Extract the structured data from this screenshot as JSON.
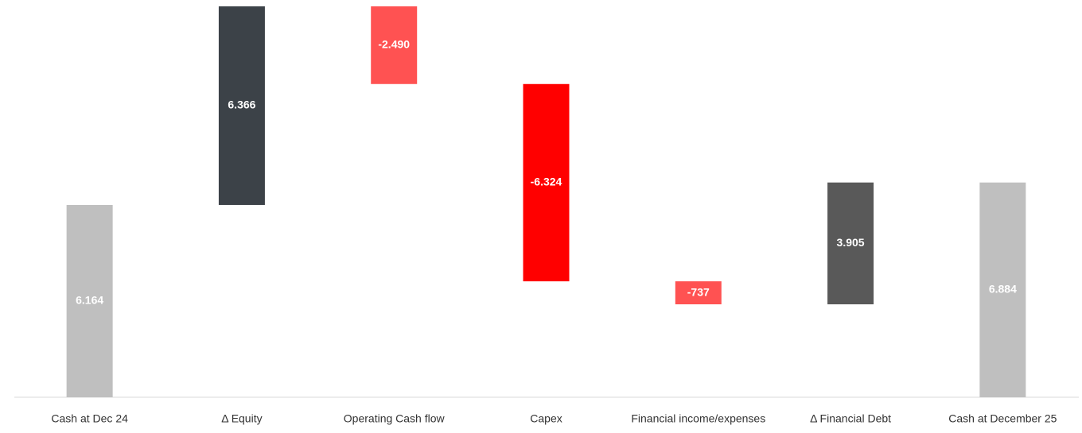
{
  "chart_data": {
    "type": "waterfall",
    "categories": [
      "Cash at Dec 24",
      "Δ Equity",
      "Operating Cash flow",
      "Capex",
      "Financial income/expenses",
      "Δ Financial Debt",
      "Cash at December 25"
    ],
    "values": [
      6164,
      6366,
      -2490,
      -6324,
      -737,
      3905,
      6884
    ],
    "value_labels": [
      "6.164",
      "6.366",
      "-2.490",
      "-6.324",
      "-737",
      "3.905",
      "6.884"
    ],
    "measure": [
      "total",
      "relative",
      "relative",
      "relative",
      "relative",
      "relative",
      "total"
    ],
    "colors": [
      "#bfbfbf",
      "#3c4248",
      "#ff5252",
      "#ff0000",
      "#ff5252",
      "#595959",
      "#bfbfbf"
    ]
  }
}
